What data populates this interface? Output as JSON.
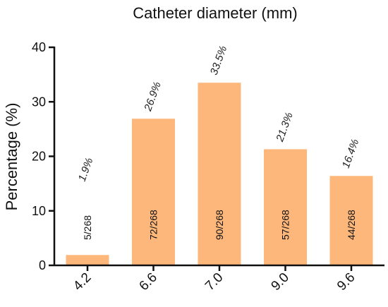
{
  "chart_data": {
    "type": "bar",
    "title": "Catheter diameter (mm)",
    "ylabel": "Percentage (%)",
    "xlabel": "",
    "ylim": [
      0,
      40
    ],
    "yticks": [
      0,
      10,
      20,
      30,
      40
    ],
    "grid": false,
    "bar_color": "#FDB77A",
    "categories": [
      "4.2",
      "6.6",
      "7.0",
      "9.0",
      "9.6"
    ],
    "values": [
      1.9,
      26.9,
      33.5,
      21.3,
      16.4
    ],
    "percent_labels": [
      "1.9%",
      "26.9%",
      "33.5%",
      "21.3%",
      "16.4%"
    ],
    "count_labels": [
      "5/268",
      "72/268",
      "90/268",
      "57/268",
      "44/268"
    ]
  }
}
